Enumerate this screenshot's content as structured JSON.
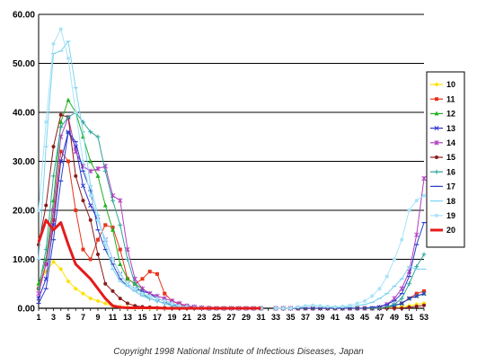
{
  "chart_data": {
    "type": "line",
    "x": [
      1,
      2,
      3,
      4,
      5,
      6,
      7,
      8,
      9,
      10,
      11,
      12,
      13,
      14,
      15,
      16,
      17,
      18,
      19,
      20,
      21,
      22,
      23,
      24,
      25,
      26,
      27,
      28,
      29,
      30,
      31,
      32,
      33,
      34,
      35,
      36,
      37,
      38,
      39,
      40,
      41,
      42,
      43,
      44,
      45,
      46,
      47,
      48,
      49,
      50,
      51,
      52,
      53
    ],
    "xticks": [
      1,
      3,
      5,
      7,
      9,
      11,
      13,
      15,
      17,
      19,
      21,
      23,
      25,
      27,
      29,
      31,
      33,
      35,
      37,
      39,
      41,
      43,
      45,
      47,
      49,
      51,
      53
    ],
    "ylim": [
      0,
      60
    ],
    "yticks": [
      "0.00",
      "10.00",
      "20.00",
      "30.00",
      "40.00",
      "50.00",
      "60.00"
    ],
    "ytick_values": [
      0,
      10,
      20,
      30,
      40,
      50,
      60
    ],
    "grid": "horizontal",
    "legend_position": "right",
    "series": [
      {
        "name": "10",
        "color": "#ffe000",
        "marker": "diamond",
        "values": [
          5.0,
          7.5,
          9.5,
          8.0,
          5.5,
          4.0,
          3.0,
          2.0,
          1.5,
          1.0,
          0.5,
          0.3,
          0.2,
          0.1,
          0.1,
          0,
          0,
          0,
          0,
          0,
          0,
          0,
          0,
          0,
          0,
          0,
          0,
          0,
          0,
          0,
          0,
          null,
          0,
          0,
          0,
          0,
          0,
          0,
          0,
          0,
          0,
          0,
          0,
          0,
          0,
          0,
          0,
          0.1,
          0.2,
          0.3,
          0.5,
          0.8,
          1.0
        ]
      },
      {
        "name": "11",
        "color": "#e8341c",
        "marker": "square",
        "values": [
          4.0,
          9.0,
          18.0,
          32.0,
          30.0,
          20.0,
          12.0,
          10.0,
          14.0,
          17.0,
          16.5,
          12.0,
          6.0,
          5.0,
          6.0,
          7.5,
          7.0,
          3.0,
          1.5,
          0.8,
          0.4,
          0.2,
          0.1,
          0.1,
          0,
          0,
          0,
          0,
          0,
          0,
          0,
          null,
          0,
          0,
          0,
          0,
          0,
          0,
          0,
          0,
          0,
          0,
          0,
          0,
          0,
          0,
          0,
          0.3,
          0.6,
          1.0,
          2.0,
          3.0,
          3.5
        ]
      },
      {
        "name": "12",
        "color": "#22b022",
        "marker": "triangle",
        "values": [
          5.0,
          10.0,
          22.0,
          38.0,
          42.5,
          40.0,
          35.0,
          30.0,
          27.0,
          21.0,
          16.0,
          9.0,
          6.0,
          5.0,
          4.0,
          3.0,
          2.0,
          1.5,
          1.0,
          0.5,
          0.3,
          0.2,
          0.1,
          0,
          0,
          0,
          0,
          0,
          0,
          0,
          0,
          null,
          0,
          0,
          0,
          0,
          0,
          0,
          0,
          0,
          0,
          0,
          0,
          0,
          0,
          0,
          0,
          0.2,
          0.5,
          1.0,
          2.0,
          2.5,
          3.0
        ]
      },
      {
        "name": "13",
        "color": "#3030d0",
        "marker": "x",
        "values": [
          2.0,
          6.0,
          17.0,
          30.0,
          36.0,
          33.0,
          25.0,
          21.0,
          18.0,
          14.0,
          10.0,
          7.0,
          5.0,
          4.0,
          3.5,
          3.0,
          2.0,
          1.5,
          1.0,
          0.5,
          0.3,
          0.2,
          0.1,
          0,
          0,
          0,
          0,
          0,
          0,
          0,
          0,
          null,
          0,
          0,
          0,
          0,
          0,
          0,
          0,
          0,
          0,
          0,
          0,
          0,
          0,
          0,
          0,
          0.3,
          0.6,
          1.0,
          2.0,
          2.5,
          3.0
        ]
      },
      {
        "name": "14",
        "color": "#b040c0",
        "marker": "star",
        "values": [
          3.0,
          9.0,
          20.0,
          35.0,
          39.0,
          32.0,
          29.0,
          28.0,
          28.5,
          29.0,
          23.0,
          22.0,
          12.0,
          6.0,
          4.0,
          3.0,
          2.5,
          2.0,
          1.5,
          1.0,
          0.5,
          0.3,
          0.1,
          0,
          0,
          0,
          0,
          0,
          0,
          0,
          0,
          null,
          0,
          0,
          0,
          0,
          0,
          0,
          0,
          0,
          0,
          0,
          0,
          0,
          0,
          0,
          0.2,
          0.8,
          2.0,
          4.0,
          7.5,
          15.0,
          26.5
        ]
      },
      {
        "name": "15",
        "color": "#8b1a1a",
        "marker": "circle",
        "values": [
          13.0,
          21.0,
          33.0,
          39.5,
          39.0,
          27.0,
          22.0,
          18.0,
          11.0,
          5.0,
          3.5,
          2.0,
          1.0,
          0.5,
          0.3,
          0.2,
          0.1,
          0.1,
          0,
          0,
          0,
          0,
          0,
          0,
          0,
          0,
          0,
          0,
          0,
          0,
          0,
          null,
          0,
          0,
          0,
          0,
          0,
          0,
          0,
          0,
          0,
          0,
          0,
          0,
          0,
          0,
          0,
          0,
          0,
          0,
          0.2,
          0.4,
          0.6
        ]
      },
      {
        "name": "16",
        "color": "#2ea59a",
        "marker": "plus",
        "values": [
          4.0,
          12.0,
          27.0,
          37.0,
          39.0,
          40.0,
          38.0,
          36.0,
          35.0,
          28.0,
          22.0,
          17.0,
          10.0,
          5.0,
          3.0,
          2.0,
          1.5,
          1.0,
          0.5,
          0.3,
          0.2,
          0.1,
          0,
          0,
          0,
          0,
          0,
          0,
          0,
          0,
          0,
          null,
          0,
          0,
          0,
          0,
          0,
          0,
          0,
          0,
          0,
          0,
          0,
          0,
          0,
          0,
          0,
          0.3,
          0.8,
          2.0,
          5.0,
          8.5,
          11.0
        ]
      },
      {
        "name": "17",
        "color": "#2a40c8",
        "marker": "dash",
        "values": [
          1.0,
          4.0,
          14.0,
          26.0,
          36.0,
          34.0,
          28.0,
          24.0,
          16.0,
          12.0,
          9.0,
          6.0,
          4.5,
          3.5,
          2.5,
          2.0,
          1.5,
          1.0,
          0.8,
          0.5,
          0.3,
          0.1,
          0,
          0,
          0,
          0,
          0,
          0,
          0,
          0,
          0,
          null,
          0,
          0,
          0,
          0,
          0,
          0,
          0,
          0,
          0,
          0,
          0,
          0,
          0,
          0.2,
          0.4,
          0.8,
          1.5,
          3.0,
          6.5,
          13.0,
          17.5
        ]
      },
      {
        "name": "18",
        "color": "#7fd4ef",
        "marker": "dash",
        "values": [
          10.0,
          33.0,
          52.0,
          52.5,
          54.5,
          45.0,
          36.0,
          25.0,
          19.0,
          13.0,
          8.0,
          5.5,
          4.5,
          3.5,
          2.5,
          2.0,
          1.5,
          1.0,
          0.6,
          0.3,
          0.2,
          0.1,
          0,
          0,
          0,
          0,
          0,
          0,
          0,
          0,
          0,
          null,
          0,
          0,
          0,
          0.2,
          0.4,
          0.5,
          0.4,
          0.3,
          0.2,
          0.2,
          0.3,
          0.5,
          0.8,
          1.2,
          2.0,
          3.0,
          4.5,
          6.0,
          8.5,
          8.0,
          8.0
        ]
      },
      {
        "name": "19",
        "color": "#a8e4f8",
        "marker": "circle",
        "values": [
          20.0,
          38.0,
          54.0,
          57.0,
          51.0,
          40.0,
          30.0,
          23.0,
          18.0,
          14.0,
          10.0,
          7.0,
          5.0,
          4.0,
          3.0,
          2.5,
          2.0,
          1.5,
          1.0,
          0.5,
          0.3,
          0.1,
          0,
          0,
          0,
          0,
          0,
          0,
          0,
          0,
          0,
          null,
          0,
          0,
          0,
          0.3,
          0.5,
          0.6,
          0.5,
          0.4,
          0.3,
          0.4,
          0.6,
          1.0,
          1.5,
          2.5,
          4.0,
          6.5,
          10.0,
          14.0,
          20.0,
          22.0,
          23.0
        ]
      },
      {
        "name": "20",
        "color": "#e51b1b",
        "marker": "dot",
        "bold": true,
        "values": [
          13.5,
          18.0,
          16.0,
          17.5,
          13.0,
          9.0,
          7.5,
          6.0,
          4.0,
          2.0,
          0.5,
          0.2,
          0.1,
          0.1,
          0.1,
          0.1,
          0.1,
          0,
          0,
          0,
          0,
          0,
          0,
          0,
          0,
          0,
          0,
          0,
          0,
          0,
          0,
          null,
          null,
          null,
          null,
          null,
          null,
          null,
          null,
          null,
          null,
          null,
          null,
          null,
          null,
          null,
          null,
          null,
          null,
          null,
          null,
          null,
          null
        ]
      }
    ]
  },
  "footer": {
    "copyright": "Copyright 1998 National Institute of Infectious Diseases, Japan"
  }
}
